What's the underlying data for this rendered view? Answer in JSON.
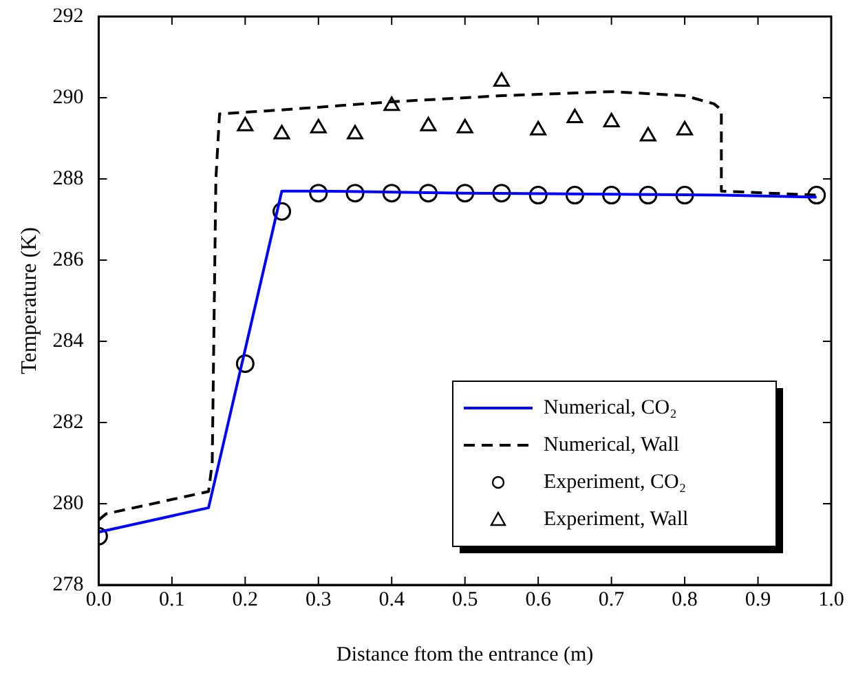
{
  "chart_data": {
    "type": "line",
    "xlabel": "Distance ftom the entrance (m)",
    "ylabel": "Temperature (K)",
    "xlim": [
      0,
      1
    ],
    "xticks": [
      {
        "value": 0,
        "label": "0.0"
      },
      0.1,
      0.2,
      0.3,
      0.4,
      0.5,
      0.6,
      0.7,
      0.8,
      0.9,
      {
        "value": 1,
        "label": "1.0"
      }
    ],
    "ylim": [
      278,
      292
    ],
    "yticks": [
      278,
      280,
      282,
      284,
      286,
      288,
      290,
      292
    ],
    "grid": false,
    "legend": "bottom right",
    "series": [
      {
        "name": "Numerical, CO₂",
        "color": "#0000ff",
        "marker": "none",
        "line_style": "solid",
        "x": [
          0,
          0.15,
          0.25,
          0.3,
          0.5,
          0.85,
          0.98
        ],
        "values": [
          279.3,
          279.9,
          287.7,
          287.7,
          287.65,
          287.6,
          287.55
        ]
      },
      {
        "name": "Numerical, Wall",
        "color": "#000000",
        "marker": "none",
        "line_style": "dashed",
        "x": [
          0,
          0.01,
          0.15,
          0.155,
          0.16,
          0.165,
          0.25,
          0.4,
          0.55,
          0.7,
          0.8,
          0.84,
          0.85,
          0.85,
          0.98
        ],
        "values": [
          279.6,
          279.75,
          280.3,
          281,
          288,
          289.6,
          289.7,
          289.9,
          290.05,
          290.15,
          290.05,
          289.85,
          289.7,
          287.7,
          287.6
        ]
      },
      {
        "name": "Experiment, CO₂",
        "type": "scatter",
        "color": "#000000",
        "marker": "circle",
        "x": [
          0,
          0.2,
          0.25,
          0.3,
          0.35,
          0.4,
          0.45,
          0.5,
          0.55,
          0.6,
          0.65,
          0.7,
          0.75,
          0.8,
          0.98
        ],
        "values": [
          279.2,
          283.45,
          287.2,
          287.65,
          287.65,
          287.65,
          287.65,
          287.65,
          287.65,
          287.6,
          287.6,
          287.6,
          287.6,
          287.6,
          287.6
        ]
      },
      {
        "name": "Experiment, Wall",
        "type": "scatter",
        "color": "#000000",
        "marker": "triangle",
        "x": [
          0.2,
          0.25,
          0.3,
          0.35,
          0.4,
          0.45,
          0.5,
          0.55,
          0.6,
          0.65,
          0.7,
          0.75,
          0.8
        ],
        "values": [
          289.3,
          289.1,
          289.25,
          289.1,
          289.8,
          289.3,
          289.25,
          290.4,
          289.2,
          289.5,
          289.4,
          289.05,
          289.2
        ]
      }
    ]
  }
}
